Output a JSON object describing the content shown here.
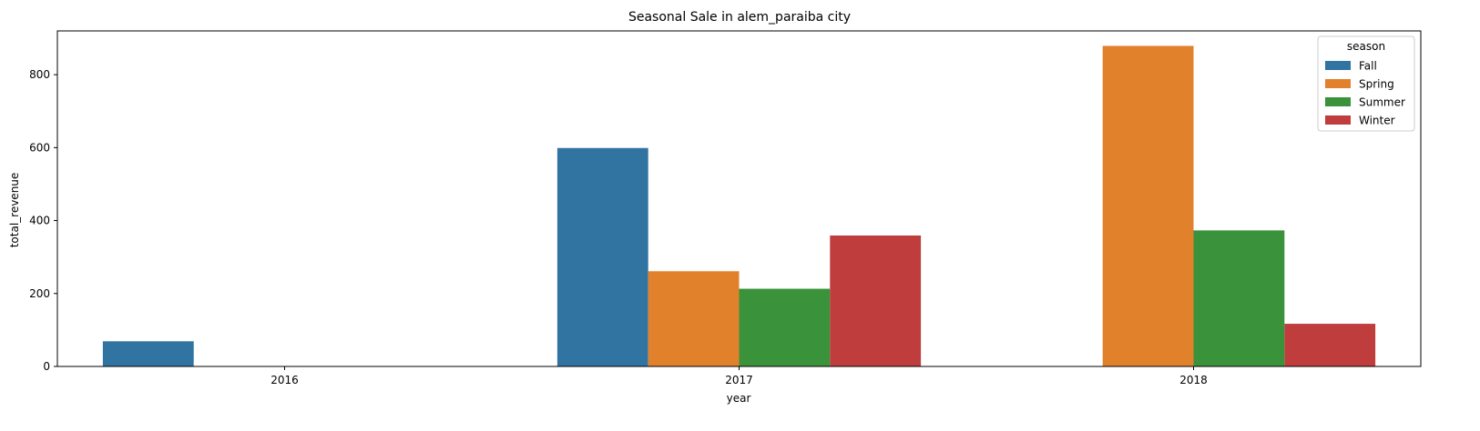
{
  "chart_data": {
    "type": "bar",
    "title": "Seasonal Sale in alem_paraiba city",
    "xlabel": "year",
    "ylabel": "total_revenue",
    "categories": [
      "2016",
      "2017",
      "2018"
    ],
    "ylim": [
      0,
      920
    ],
    "yticks": [
      0,
      200,
      400,
      600,
      800
    ],
    "grid": false,
    "legend": {
      "title": "season",
      "position": "top-right"
    },
    "series": [
      {
        "name": "Fall",
        "color": "#3274a1",
        "values": [
          69,
          599,
          null
        ]
      },
      {
        "name": "Spring",
        "color": "#e1812c",
        "values": [
          null,
          261,
          879
        ]
      },
      {
        "name": "Summer",
        "color": "#3a923a",
        "values": [
          null,
          213,
          373
        ]
      },
      {
        "name": "Winter",
        "color": "#c03d3e",
        "values": [
          null,
          359,
          117
        ]
      }
    ]
  }
}
